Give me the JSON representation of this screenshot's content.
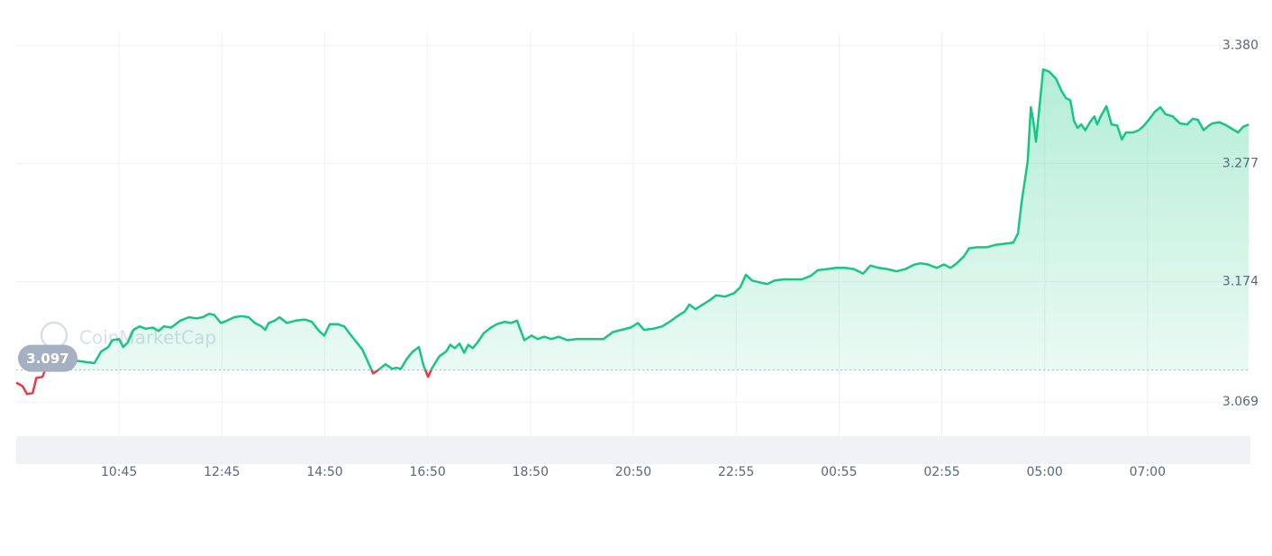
{
  "chart_data": {
    "type": "line",
    "watermark": "CoinMarketCap",
    "color": "#16c784",
    "down_color": "#ea3943",
    "baseline": 3.097,
    "xlim": [
      0,
      24
    ],
    "ylim": [
      3.015,
      3.392
    ],
    "grid": true,
    "xticks": [
      {
        "value": 2,
        "label": "10:45"
      },
      {
        "value": 4,
        "label": "12:45"
      },
      {
        "value": 6,
        "label": "14:50"
      },
      {
        "value": 8,
        "label": "16:50"
      },
      {
        "value": 10,
        "label": "18:50"
      },
      {
        "value": 12,
        "label": "20:50"
      },
      {
        "value": 14,
        "label": "22:55"
      },
      {
        "value": 16,
        "label": "00:55"
      },
      {
        "value": 18,
        "label": "02:55"
      },
      {
        "value": 20,
        "label": "05:00"
      },
      {
        "value": 22,
        "label": "07:00"
      }
    ],
    "yticks": [
      3.069,
      3.174,
      3.277,
      {
        "value": 3.38,
        "label": "3.380"
      }
    ],
    "x": [
      0.0,
      0.12,
      0.21,
      0.32,
      0.39,
      0.51,
      0.6,
      0.7,
      0.81,
      0.91,
      1.0,
      1.09,
      1.19,
      1.35,
      1.52,
      1.65,
      1.79,
      1.87,
      2.0,
      2.08,
      2.17,
      2.28,
      2.4,
      2.52,
      2.66,
      2.77,
      2.87,
      3.01,
      3.1,
      3.19,
      3.36,
      3.5,
      3.63,
      3.75,
      3.85,
      3.98,
      4.1,
      4.24,
      4.38,
      4.52,
      4.64,
      4.77,
      4.84,
      4.91,
      5.03,
      5.12,
      5.26,
      5.43,
      5.61,
      5.75,
      5.89,
      5.99,
      6.1,
      6.25,
      6.38,
      6.48,
      6.62,
      6.73,
      6.83,
      6.94,
      7.04,
      7.18,
      7.31,
      7.39,
      7.48,
      7.6,
      7.71,
      7.83,
      7.92,
      8.01,
      8.09,
      8.23,
      8.36,
      8.44,
      8.53,
      8.62,
      8.71,
      8.79,
      8.88,
      8.97,
      9.09,
      9.23,
      9.35,
      9.5,
      9.62,
      9.74,
      9.88,
      10.02,
      10.14,
      10.27,
      10.41,
      10.55,
      10.72,
      10.9,
      11.07,
      11.25,
      11.42,
      11.6,
      11.77,
      11.95,
      12.09,
      12.21,
      12.39,
      12.56,
      12.74,
      12.86,
      13.0,
      13.09,
      13.21,
      13.35,
      13.49,
      13.61,
      13.79,
      13.96,
      14.08,
      14.19,
      14.31,
      14.49,
      14.61,
      14.75,
      14.93,
      15.1,
      15.28,
      15.45,
      15.59,
      15.77,
      15.94,
      16.12,
      16.29,
      16.47,
      16.61,
      16.77,
      16.94,
      17.12,
      17.29,
      17.47,
      17.59,
      17.73,
      17.9,
      18.04,
      18.17,
      18.29,
      18.43,
      18.53,
      18.69,
      18.87,
      19.04,
      19.22,
      19.39,
      19.48,
      19.55,
      19.62,
      19.67,
      19.73,
      19.78,
      19.83,
      19.88,
      19.97,
      20.09,
      20.22,
      20.32,
      20.41,
      20.5,
      20.57,
      20.64,
      20.71,
      20.79,
      20.88,
      20.97,
      21.02,
      21.09,
      21.2,
      21.3,
      21.41,
      21.5,
      21.58,
      21.72,
      21.83,
      21.93,
      22.04,
      22.14,
      22.25,
      22.35,
      22.49,
      22.63,
      22.77,
      22.88,
      22.98,
      23.09,
      23.19,
      23.26,
      23.4,
      23.54,
      23.65,
      23.76,
      23.86,
      23.97
    ],
    "values": [
      3.086,
      3.083,
      3.076,
      3.077,
      3.09,
      3.091,
      3.101,
      3.105,
      3.107,
      3.101,
      3.098,
      3.104,
      3.105,
      3.104,
      3.103,
      3.113,
      3.117,
      3.123,
      3.124,
      3.117,
      3.121,
      3.132,
      3.135,
      3.133,
      3.134,
      3.131,
      3.135,
      3.134,
      3.137,
      3.14,
      3.143,
      3.142,
      3.143,
      3.146,
      3.145,
      3.138,
      3.14,
      3.143,
      3.144,
      3.143,
      3.138,
      3.135,
      3.132,
      3.138,
      3.14,
      3.143,
      3.138,
      3.14,
      3.141,
      3.139,
      3.131,
      3.127,
      3.137,
      3.137,
      3.135,
      3.129,
      3.121,
      3.115,
      3.105,
      3.094,
      3.097,
      3.102,
      3.098,
      3.099,
      3.098,
      3.107,
      3.113,
      3.117,
      3.101,
      3.091,
      3.099,
      3.109,
      3.113,
      3.119,
      3.116,
      3.12,
      3.112,
      3.119,
      3.116,
      3.121,
      3.129,
      3.134,
      3.137,
      3.139,
      3.138,
      3.14,
      3.123,
      3.127,
      3.124,
      3.126,
      3.124,
      3.126,
      3.123,
      3.124,
      3.124,
      3.124,
      3.124,
      3.13,
      3.132,
      3.134,
      3.138,
      3.132,
      3.133,
      3.135,
      3.14,
      3.144,
      3.148,
      3.154,
      3.15,
      3.154,
      3.158,
      3.162,
      3.161,
      3.164,
      3.169,
      3.18,
      3.175,
      3.173,
      3.172,
      3.175,
      3.176,
      3.176,
      3.176,
      3.179,
      3.184,
      3.185,
      3.186,
      3.186,
      3.185,
      3.181,
      3.188,
      3.186,
      3.185,
      3.183,
      3.185,
      3.189,
      3.19,
      3.189,
      3.186,
      3.189,
      3.186,
      3.19,
      3.196,
      3.203,
      3.204,
      3.204,
      3.206,
      3.207,
      3.208,
      3.216,
      3.243,
      3.264,
      3.279,
      3.326,
      3.314,
      3.296,
      3.318,
      3.359,
      3.357,
      3.351,
      3.341,
      3.334,
      3.332,
      3.314,
      3.308,
      3.311,
      3.306,
      3.313,
      3.318,
      3.311,
      3.318,
      3.327,
      3.311,
      3.31,
      3.298,
      3.304,
      3.304,
      3.306,
      3.31,
      3.316,
      3.322,
      3.326,
      3.32,
      3.318,
      3.312,
      3.311,
      3.316,
      3.315,
      3.306,
      3.31,
      3.312,
      3.313,
      3.31,
      3.307,
      3.304,
      3.309,
      3.311
    ]
  }
}
